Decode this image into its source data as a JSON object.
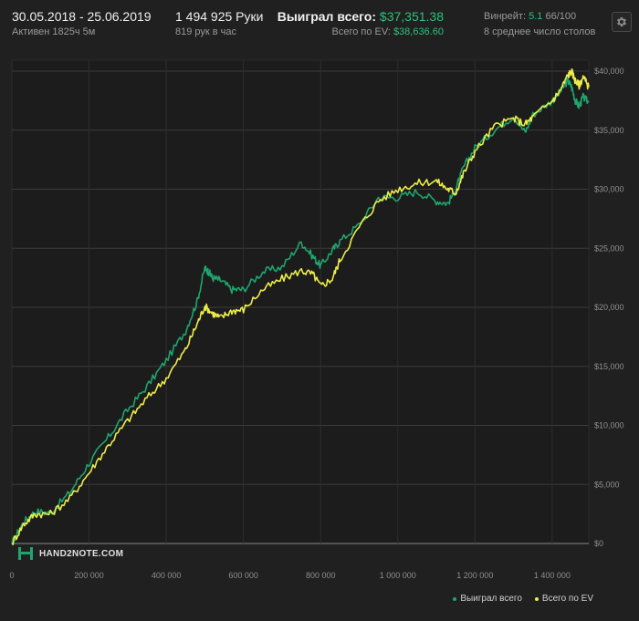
{
  "header": {
    "date_range": "30.05.2018 - 25.06.2019",
    "active": "Активен 1825ч 5м",
    "hands": "1 494 925 Руки",
    "hands_per_hour": "819 рук в час",
    "won_label": "Выиграл всего:",
    "won_value": "$37,351.38",
    "ev_label": "Всего по EV:",
    "ev_value": "$38,636.60",
    "winrate_label": "Винрейт:",
    "winrate_value": "5.1",
    "winrate_suffix": "66/100",
    "tables": "8 среднее число столов",
    "settings_icon": "gear-icon"
  },
  "logo": {
    "text": "HAND2NOTE.COM",
    "icon": "h2n-logo-icon"
  },
  "colors": {
    "won": "#1fa56e",
    "ev": "#ecec4a",
    "background": "#202020",
    "grid": "#3a3a3a"
  },
  "chart_data": {
    "type": "line",
    "xlim": [
      0,
      1494925
    ],
    "ylim": [
      0,
      40000
    ],
    "x_ticks": [
      0,
      200000,
      400000,
      600000,
      800000,
      1000000,
      1200000,
      1400000
    ],
    "x_tick_labels": [
      "0",
      "200 000",
      "400 000",
      "600 000",
      "800 000",
      "1 000 000",
      "1 200 000",
      "1 400 000"
    ],
    "y_ticks": [
      0,
      5000,
      10000,
      15000,
      20000,
      25000,
      30000,
      35000,
      40000
    ],
    "y_tick_labels": [
      "$0",
      "$5,000",
      "$10,000",
      "$15,000",
      "$20,000",
      "$25,000",
      "$30,000",
      "$35,000",
      "$40,000"
    ],
    "grid": true,
    "legend_position": "bottom-right",
    "series": [
      {
        "name": "Выиграл всего",
        "color": "#1fa56e",
        "x": [
          0,
          30000,
          60000,
          100000,
          150000,
          200000,
          250000,
          300000,
          350000,
          400000,
          450000,
          480000,
          500000,
          510000,
          520000,
          540000,
          570000,
          600000,
          650000,
          700000,
          750000,
          780000,
          800000,
          830000,
          850000,
          900000,
          950000,
          1000000,
          1050000,
          1100000,
          1130000,
          1150000,
          1170000,
          1200000,
          1250000,
          1300000,
          1330000,
          1350000,
          1400000,
          1420000,
          1440000,
          1450000,
          1460000,
          1470000,
          1480000,
          1494925
        ],
        "y": [
          0,
          1800,
          2700,
          2600,
          4300,
          6800,
          9000,
          11300,
          13300,
          15500,
          18000,
          20500,
          23300,
          23000,
          22500,
          22300,
          21500,
          21500,
          23000,
          23400,
          25500,
          24300,
          23500,
          24800,
          25600,
          27000,
          29300,
          29300,
          29800,
          29000,
          28800,
          30000,
          31800,
          33500,
          35000,
          36200,
          34800,
          36300,
          37500,
          38200,
          39200,
          38700,
          37500,
          37000,
          37800,
          37351
        ]
      },
      {
        "name": "Всего по EV",
        "color": "#ecec4a",
        "x": [
          0,
          30000,
          60000,
          100000,
          150000,
          200000,
          250000,
          300000,
          350000,
          400000,
          450000,
          480000,
          500000,
          520000,
          540000,
          570000,
          600000,
          650000,
          700000,
          750000,
          780000,
          800000,
          830000,
          850000,
          900000,
          950000,
          1000000,
          1050000,
          1100000,
          1130000,
          1150000,
          1170000,
          1200000,
          1250000,
          1300000,
          1330000,
          1350000,
          1400000,
          1420000,
          1440000,
          1450000,
          1460000,
          1470000,
          1480000,
          1494925
        ],
        "y": [
          0,
          1600,
          2500,
          2500,
          3800,
          6000,
          8300,
          10400,
          12300,
          14000,
          16400,
          18600,
          20100,
          19500,
          19100,
          19700,
          19800,
          21500,
          22400,
          23100,
          22800,
          21800,
          22400,
          24000,
          26800,
          29000,
          30000,
          30500,
          30700,
          30000,
          29700,
          31300,
          33200,
          35300,
          36000,
          35500,
          36100,
          37500,
          38300,
          39600,
          40000,
          39200,
          38800,
          39500,
          38636
        ]
      }
    ]
  }
}
